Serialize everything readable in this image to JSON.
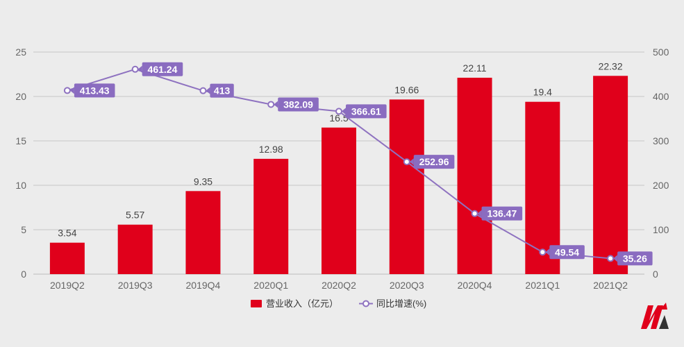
{
  "chart_data": {
    "type": "bar",
    "categories": [
      "2019Q2",
      "2019Q3",
      "2019Q4",
      "2020Q1",
      "2020Q2",
      "2020Q3",
      "2020Q4",
      "2021Q1",
      "2021Q2"
    ],
    "series": [
      {
        "name": "营业收入（亿元）",
        "type": "bar",
        "axis": "left",
        "values": [
          3.54,
          5.57,
          9.35,
          12.98,
          16.5,
          19.66,
          22.11,
          19.4,
          22.32
        ],
        "labels": [
          "3.54",
          "5.57",
          "9.35",
          "12.98",
          "16.5",
          "19.66",
          "22.11",
          "19.4",
          "22.32"
        ]
      },
      {
        "name": "同比增速(%)",
        "type": "line",
        "axis": "right",
        "values": [
          413.43,
          461.24,
          413,
          382.09,
          366.61,
          252.96,
          136.47,
          49.54,
          35.26
        ],
        "labels": [
          "413.43",
          "461.24",
          "413",
          "382.09",
          "366.61",
          "252.96",
          "136.47",
          "49.54",
          "35.26"
        ]
      }
    ],
    "y_left": {
      "min": 0,
      "max": 25,
      "ticks": [
        0,
        5,
        10,
        15,
        20,
        25
      ]
    },
    "y_right": {
      "min": 0,
      "max": 500,
      "ticks": [
        0,
        100,
        200,
        300,
        400,
        500
      ]
    },
    "grid": true,
    "legend_position": "bottom-center",
    "colors": {
      "bar": "#e0001b",
      "line": "#8e72c0",
      "label_bg": "#8a6cc0"
    }
  }
}
